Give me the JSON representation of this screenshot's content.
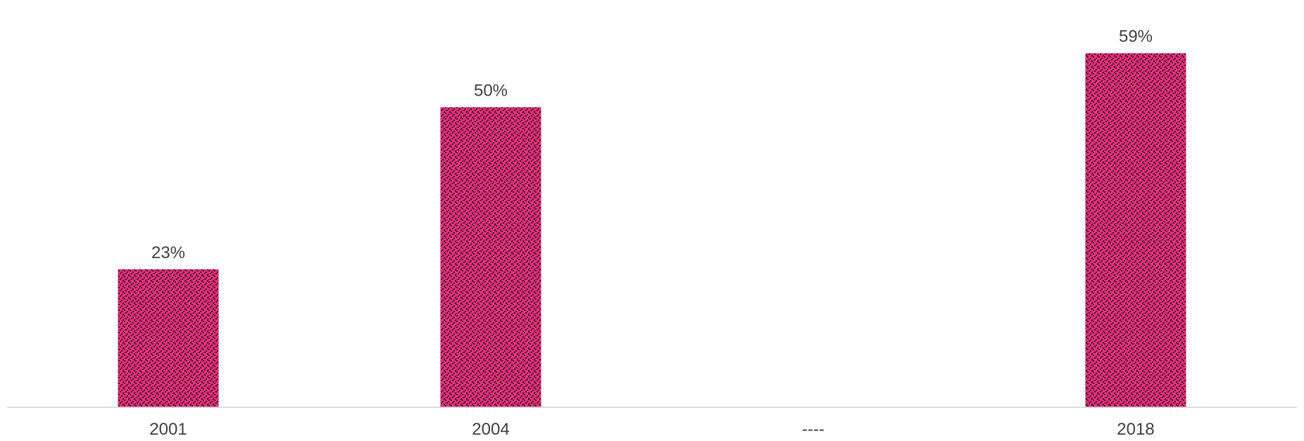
{
  "chart_data": {
    "type": "bar",
    "categories": [
      "2001",
      "2004",
      "----",
      "2018"
    ],
    "values": [
      23,
      50,
      null,
      59
    ],
    "data_labels": [
      "23%",
      "50%",
      "",
      "59%"
    ],
    "title": "",
    "xlabel": "",
    "ylabel": "",
    "ylim": [
      0,
      62
    ],
    "grid": false,
    "legend": "none",
    "colors": {
      "bar_fill": "#ff2d7a",
      "bar_pattern": "#1a1a2e",
      "axis_line": "#d0d0d0",
      "text": "#404040"
    }
  }
}
